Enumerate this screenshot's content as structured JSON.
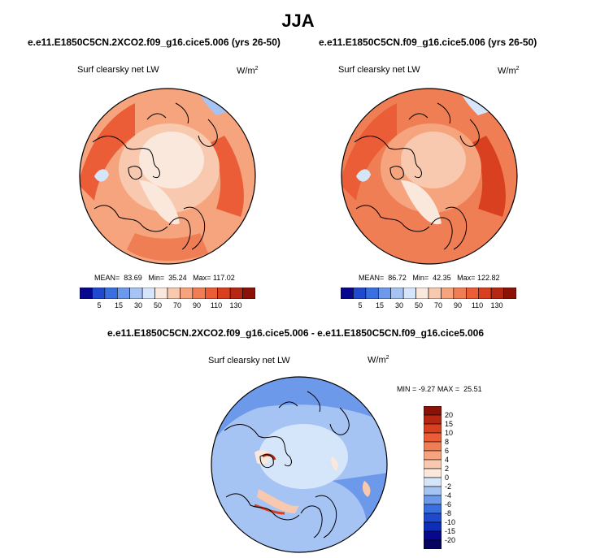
{
  "title": "JJA",
  "panels": [
    {
      "case": "e.e11.E1850C5CN.2XCO2.f09_g16.cice5.006 (yrs 26-50)",
      "variable": "Surf clearsky net LW",
      "units": "W/m",
      "units_exp": "2",
      "mean_label": "MEAN=",
      "mean": "83.69",
      "min_label": "Min=",
      "min": "35.24",
      "max_label": "Max=",
      "max": "117.02"
    },
    {
      "case": "e.e11.E1850C5CN.f09_g16.cice5.006 (yrs 26-50)",
      "variable": "Surf clearsky net LW",
      "units": "W/m",
      "units_exp": "2",
      "mean_label": "MEAN=",
      "mean": "86.72",
      "min_label": "Min=",
      "min": "42.35",
      "max_label": "Max=",
      "max": "122.82"
    }
  ],
  "diff": {
    "title": "e.e11.E1850C5CN.2XCO2.f09_g16.cice5.006 - e.e11.E1850C5CN.f09_g16.cice5.006",
    "variable": "Surf clearsky net LW",
    "units": "W/m",
    "units_exp": "2",
    "min_label": "MIN =",
    "min": "-9.27",
    "max_label": "MAX =",
    "max": "25.51"
  },
  "chart_data": [
    {
      "type": "heatmap",
      "projection": "north-polar-stereographic",
      "title": "e.e11.E1850C5CN.2XCO2.f09_g16.cice5.006 (yrs 26-50)",
      "variable": "Surf clearsky net LW",
      "units": "W/m2",
      "stats": {
        "mean": 83.69,
        "min": 35.24,
        "max": 117.02
      },
      "colorbar": {
        "orientation": "horizontal",
        "levels": [
          5,
          15,
          30,
          50,
          70,
          90,
          110,
          130
        ],
        "tick_labels": [
          "5",
          "15",
          "30",
          "50",
          "70",
          "90",
          "110",
          "130"
        ],
        "colors": [
          "#08088f",
          "#1f4ad0",
          "#3a6fe0",
          "#6c99ea",
          "#a6c4f3",
          "#d6e6fa",
          "#fbe8dc",
          "#f8c9ae",
          "#f5a47e",
          "#f07e55",
          "#ea5d36",
          "#d8401f",
          "#b52712",
          "#8c1208"
        ]
      }
    },
    {
      "type": "heatmap",
      "projection": "north-polar-stereographic",
      "title": "e.e11.E1850C5CN.f09_g16.cice5.006 (yrs 26-50)",
      "variable": "Surf clearsky net LW",
      "units": "W/m2",
      "stats": {
        "mean": 86.72,
        "min": 42.35,
        "max": 122.82
      },
      "colorbar": {
        "orientation": "horizontal",
        "levels": [
          5,
          15,
          30,
          50,
          70,
          90,
          110,
          130
        ],
        "tick_labels": [
          "5",
          "15",
          "30",
          "50",
          "70",
          "90",
          "110",
          "130"
        ],
        "colors": [
          "#08088f",
          "#1f4ad0",
          "#3a6fe0",
          "#6c99ea",
          "#a6c4f3",
          "#d6e6fa",
          "#fbe8dc",
          "#f8c9ae",
          "#f5a47e",
          "#f07e55",
          "#ea5d36",
          "#d8401f",
          "#b52712",
          "#8c1208"
        ]
      }
    },
    {
      "type": "heatmap",
      "projection": "north-polar-stereographic",
      "title": "e.e11.E1850C5CN.2XCO2.f09_g16.cice5.006 - e.e11.E1850C5CN.f09_g16.cice5.006",
      "variable": "Surf clearsky net LW",
      "units": "W/m2",
      "stats": {
        "min": -9.27,
        "max": 25.51
      },
      "colorbar": {
        "orientation": "vertical",
        "levels": [
          20,
          15,
          10,
          8,
          6,
          4,
          2,
          0,
          -2,
          -4,
          -6,
          -8,
          -10,
          -15,
          -20
        ],
        "tick_labels": [
          "20",
          "15",
          "10",
          "8",
          "6",
          "4",
          "2",
          "0",
          "-2",
          "-4",
          "-6",
          "-8",
          "-10",
          "-15",
          "-20"
        ],
        "colors": [
          "#8c1208",
          "#b52712",
          "#d8401f",
          "#ea5d36",
          "#f07e55",
          "#f5a47e",
          "#f8c9ae",
          "#fbe8dc",
          "#d6e6fa",
          "#a6c4f3",
          "#6c99ea",
          "#3a6fe0",
          "#1f4ad0",
          "#0d2fb8",
          "#08088f",
          "#050560"
        ]
      }
    }
  ]
}
